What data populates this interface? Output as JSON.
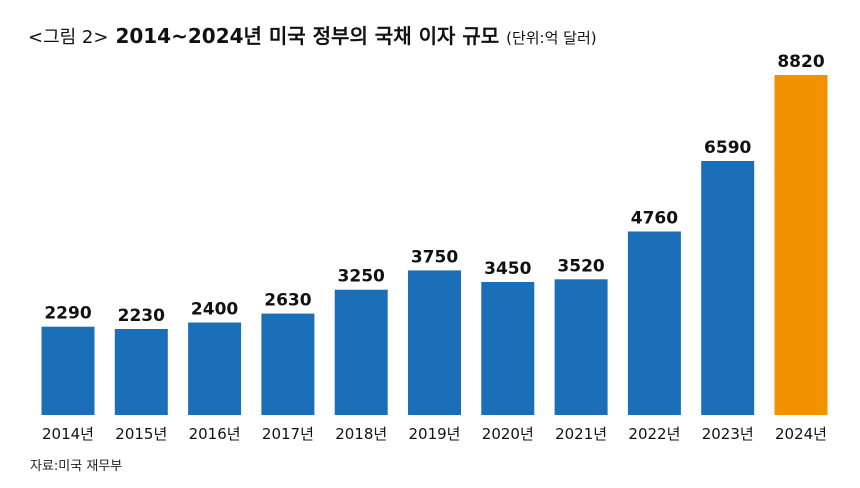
{
  "title": {
    "prefix": "<그림 2>",
    "main": "2014~2024년 미국 정부의 국채 이자 규모",
    "unit": "(단위:억 달러)"
  },
  "source": "자료:미국 재무부",
  "chart_data": {
    "type": "bar",
    "title": "2014~2024년 미국 정부의 국채 이자 규모",
    "unit": "(단위:억 달러)",
    "categories": [
      "2014년",
      "2015년",
      "2016년",
      "2017년",
      "2018년",
      "2019년",
      "2020년",
      "2021년",
      "2022년",
      "2023년",
      "2024년"
    ],
    "values": [
      2290,
      2230,
      2400,
      2630,
      3250,
      3750,
      3450,
      3520,
      4760,
      6590,
      8820
    ],
    "ylim": [
      0,
      8820
    ],
    "grid": false,
    "colors": {
      "default": "#1a6fb8",
      "highlight": "#f39200"
    },
    "highlight_category": "2024년"
  }
}
